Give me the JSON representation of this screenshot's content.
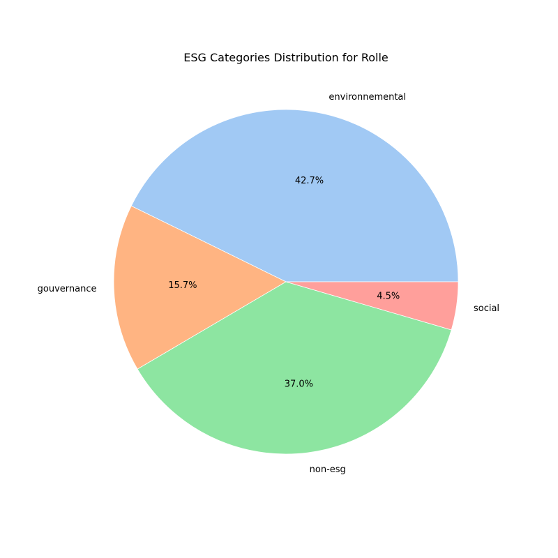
{
  "chart_data": {
    "type": "pie",
    "title": "ESG Categories Distribution for Rolle",
    "categories": [
      "environnemental",
      "gouvernance",
      "non-esg",
      "social"
    ],
    "values": [
      42.7,
      15.7,
      37.0,
      4.5
    ],
    "value_labels": [
      "42.7%",
      "15.7%",
      "37.0%",
      "4.5%"
    ],
    "colors": [
      "#a1c9f4",
      "#ffb482",
      "#8de5a1",
      "#ff9f9b"
    ],
    "start_angle_deg": 0,
    "direction": "counterclockwise",
    "legend": "none"
  }
}
